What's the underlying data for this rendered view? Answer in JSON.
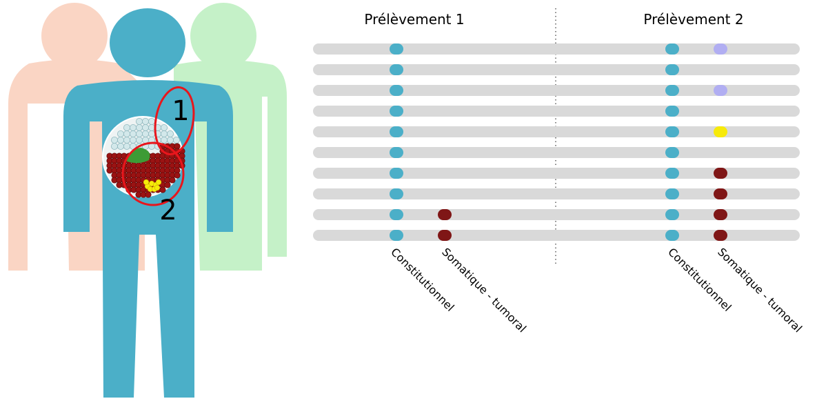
{
  "samples": [
    {
      "title": "Prélèvement 1",
      "site_label": "1"
    },
    {
      "title": "Prélèvement 2",
      "site_label": "2"
    }
  ],
  "column_labels": {
    "germline": "Constitutionnel",
    "somatic": "Somatique - tumoral"
  },
  "colors": {
    "germline": "#4bafc8",
    "somatic": "#7f1616",
    "variant_lavender": "#b1aef2",
    "variant_yellow": "#f7ea0a",
    "read_bar": "#d9d9d9",
    "person_left": "#fad5c4",
    "person_right": "#c5f1c8",
    "person_center": "#4bafc8",
    "circle_outline": "#e8161c"
  },
  "reads": {
    "sample1_germline": [
      "germline",
      "germline",
      "germline",
      "germline",
      "germline",
      "germline",
      "germline",
      "germline",
      "germline",
      "germline"
    ],
    "sample1_somatic": [
      null,
      null,
      null,
      null,
      null,
      null,
      null,
      null,
      "somatic",
      "somatic"
    ],
    "sample2_germline": [
      "germline",
      "germline",
      "germline",
      "germline",
      "germline",
      "germline",
      "germline",
      "germline",
      "germline",
      "germline"
    ],
    "sample2_somatic": [
      "variant_lavender",
      null,
      "variant_lavender",
      null,
      "variant_yellow",
      null,
      "somatic",
      "somatic",
      "somatic",
      "somatic"
    ]
  }
}
